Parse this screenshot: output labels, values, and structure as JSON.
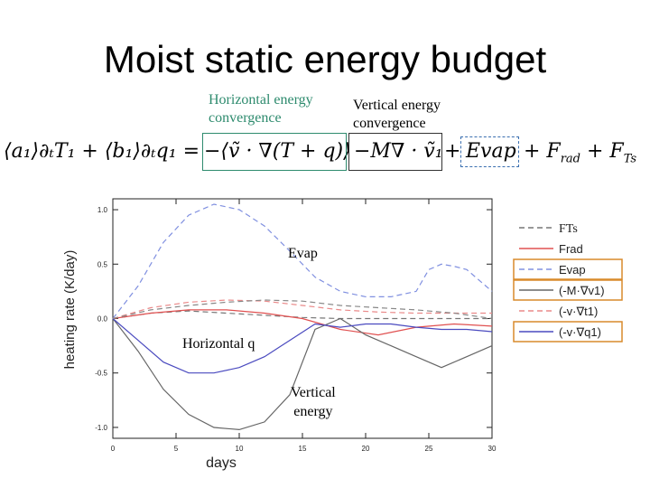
{
  "slide": {
    "title": "Moist static energy budget",
    "horizontal_label": "Horizontal energy convergence",
    "vertical_label": "Vertical energy convergence",
    "eq": {
      "lhs": "⟨a₁⟩∂ₜT₁ + ⟨b₁⟩∂ₜq₁ = ",
      "horiz": "−⟨ṽ · ∇(T + q)⟩",
      "vert": "−M∇ · ṽ₁",
      "plus1": "+",
      "evap": "Evap",
      "rest": "+ F",
      "rad_sub": "rad",
      "rest2": " + F",
      "ts_sub": "Ts"
    },
    "annotations": {
      "evap": "Evap",
      "horizontal_q": "Horizontal q",
      "vertical_energy_1": "Vertical",
      "vertical_energy_2": "energy"
    },
    "colors": {
      "horiz_box": "#2e8b6e",
      "evap_box": "#3a6fb0",
      "legend_box": "#d98a2b"
    }
  },
  "chart_data": {
    "type": "line",
    "xlabel": "days",
    "ylabel": "heating rate (K/day)",
    "xlim": [
      0,
      30
    ],
    "ylim": [
      -1.1,
      1.1
    ],
    "x_ticks": [
      0,
      5,
      10,
      15,
      20,
      25,
      30
    ],
    "y_ticks": [
      -1.0,
      -0.5,
      0.0,
      0.5,
      1.0
    ],
    "x_tick_labels": [
      "0",
      "5",
      "10",
      "15",
      "20",
      "25",
      "30"
    ],
    "y_tick_labels": [
      "-1.0",
      "-0.5",
      "0.0",
      "0.5",
      "1.0"
    ],
    "legend_position": "right",
    "series": [
      {
        "name": "FTs",
        "color": "#777777",
        "dash": "6,4",
        "x": [
          0,
          3,
          6,
          9,
          12,
          15,
          18,
          21,
          24,
          27,
          30
        ],
        "y": [
          0.0,
          0.05,
          0.07,
          0.05,
          0.03,
          0.01,
          0.0,
          0.0,
          0.0,
          0.0,
          0.0
        ]
      },
      {
        "name": "Frad",
        "color": "#e05050",
        "dash": "",
        "x": [
          0,
          3,
          6,
          9,
          12,
          15,
          18,
          21,
          24,
          27,
          30
        ],
        "y": [
          0.0,
          0.05,
          0.08,
          0.08,
          0.05,
          0.0,
          -0.1,
          -0.15,
          -0.08,
          -0.05,
          -0.07
        ]
      },
      {
        "name": "Evap",
        "color": "#8090e0",
        "dash": "6,4",
        "x": [
          0,
          2,
          4,
          6,
          8,
          10,
          12,
          14,
          16,
          18,
          20,
          22,
          24,
          25,
          26,
          27,
          28,
          29,
          30
        ],
        "y": [
          0.0,
          0.3,
          0.7,
          0.95,
          1.05,
          1.0,
          0.85,
          0.62,
          0.38,
          0.25,
          0.2,
          0.2,
          0.25,
          0.45,
          0.5,
          0.48,
          0.45,
          0.35,
          0.25
        ]
      },
      {
        "name": "(-M·∇v1)",
        "color": "#666666",
        "dash": "",
        "x": [
          0,
          2,
          4,
          6,
          8,
          10,
          12,
          14,
          16,
          18,
          20,
          22,
          24,
          26,
          28,
          30
        ],
        "y": [
          0.0,
          -0.3,
          -0.65,
          -0.88,
          -1.0,
          -1.02,
          -0.95,
          -0.7,
          -0.1,
          0.0,
          -0.15,
          -0.25,
          -0.35,
          -0.45,
          -0.35,
          -0.25
        ]
      },
      {
        "name": "(-v·∇t1)",
        "color": "#ea8a8a",
        "dash": "6,4",
        "x": [
          0,
          3,
          6,
          9,
          12,
          15,
          18,
          21,
          24,
          27,
          30
        ],
        "y": [
          0.0,
          0.1,
          0.15,
          0.17,
          0.16,
          0.12,
          0.08,
          0.06,
          0.05,
          0.05,
          0.05
        ]
      },
      {
        "name": "(-v·∇q1)",
        "color": "#4a4abf",
        "dash": "",
        "x": [
          0,
          2,
          4,
          6,
          8,
          10,
          12,
          14,
          16,
          18,
          20,
          22,
          24,
          26,
          28,
          30
        ],
        "y": [
          0.0,
          -0.2,
          -0.4,
          -0.5,
          -0.5,
          -0.45,
          -0.35,
          -0.2,
          -0.05,
          -0.08,
          -0.05,
          -0.05,
          -0.08,
          -0.1,
          -0.1,
          -0.12
        ]
      },
      {
        "name": "",
        "color": "#888888",
        "dash": "6,4",
        "x": [
          0,
          3,
          6,
          9,
          12,
          15,
          18,
          21,
          24,
          27,
          30
        ],
        "y": [
          0.0,
          0.08,
          0.12,
          0.15,
          0.17,
          0.16,
          0.12,
          0.1,
          0.08,
          0.05,
          0.0
        ]
      }
    ]
  }
}
